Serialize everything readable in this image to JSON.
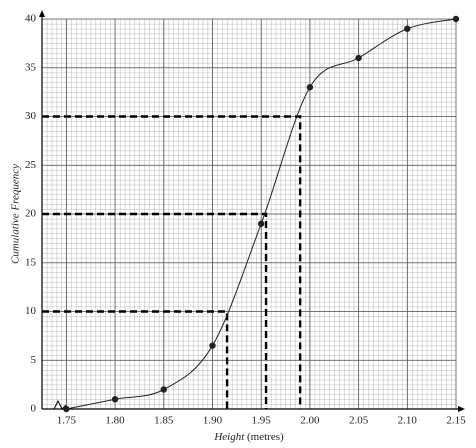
{
  "chart_data": {
    "type": "line",
    "x_label": "Height",
    "x_label_unit": "(metres)",
    "y_label": "Cumulative Frequency",
    "x": [
      1.75,
      1.8,
      1.85,
      1.9,
      1.95,
      2.0,
      2.05,
      2.1,
      2.15
    ],
    "values": [
      0,
      1,
      2,
      6.5,
      19,
      33,
      36,
      39,
      40
    ],
    "color": "#222222",
    "reading_lines": [
      {
        "y": 10,
        "x": 1.915
      },
      {
        "y": 20,
        "x": 1.955
      },
      {
        "y": 30,
        "x": 1.99
      }
    ],
    "xlim": [
      1.725,
      2.15
    ],
    "xticks": [
      1.75,
      {
        "value": 1.8,
        "label": "1.80"
      },
      1.85,
      {
        "value": 1.9,
        "label": "1.90"
      },
      1.95,
      {
        "value": 2.0,
        "label": "2.00"
      },
      2.05,
      {
        "value": 2.1,
        "label": "2.10"
      },
      2.15
    ],
    "ylim": [
      0,
      40
    ],
    "yticks": [
      0,
      5,
      10,
      15,
      20,
      25,
      30,
      35,
      40
    ],
    "grid": true
  }
}
